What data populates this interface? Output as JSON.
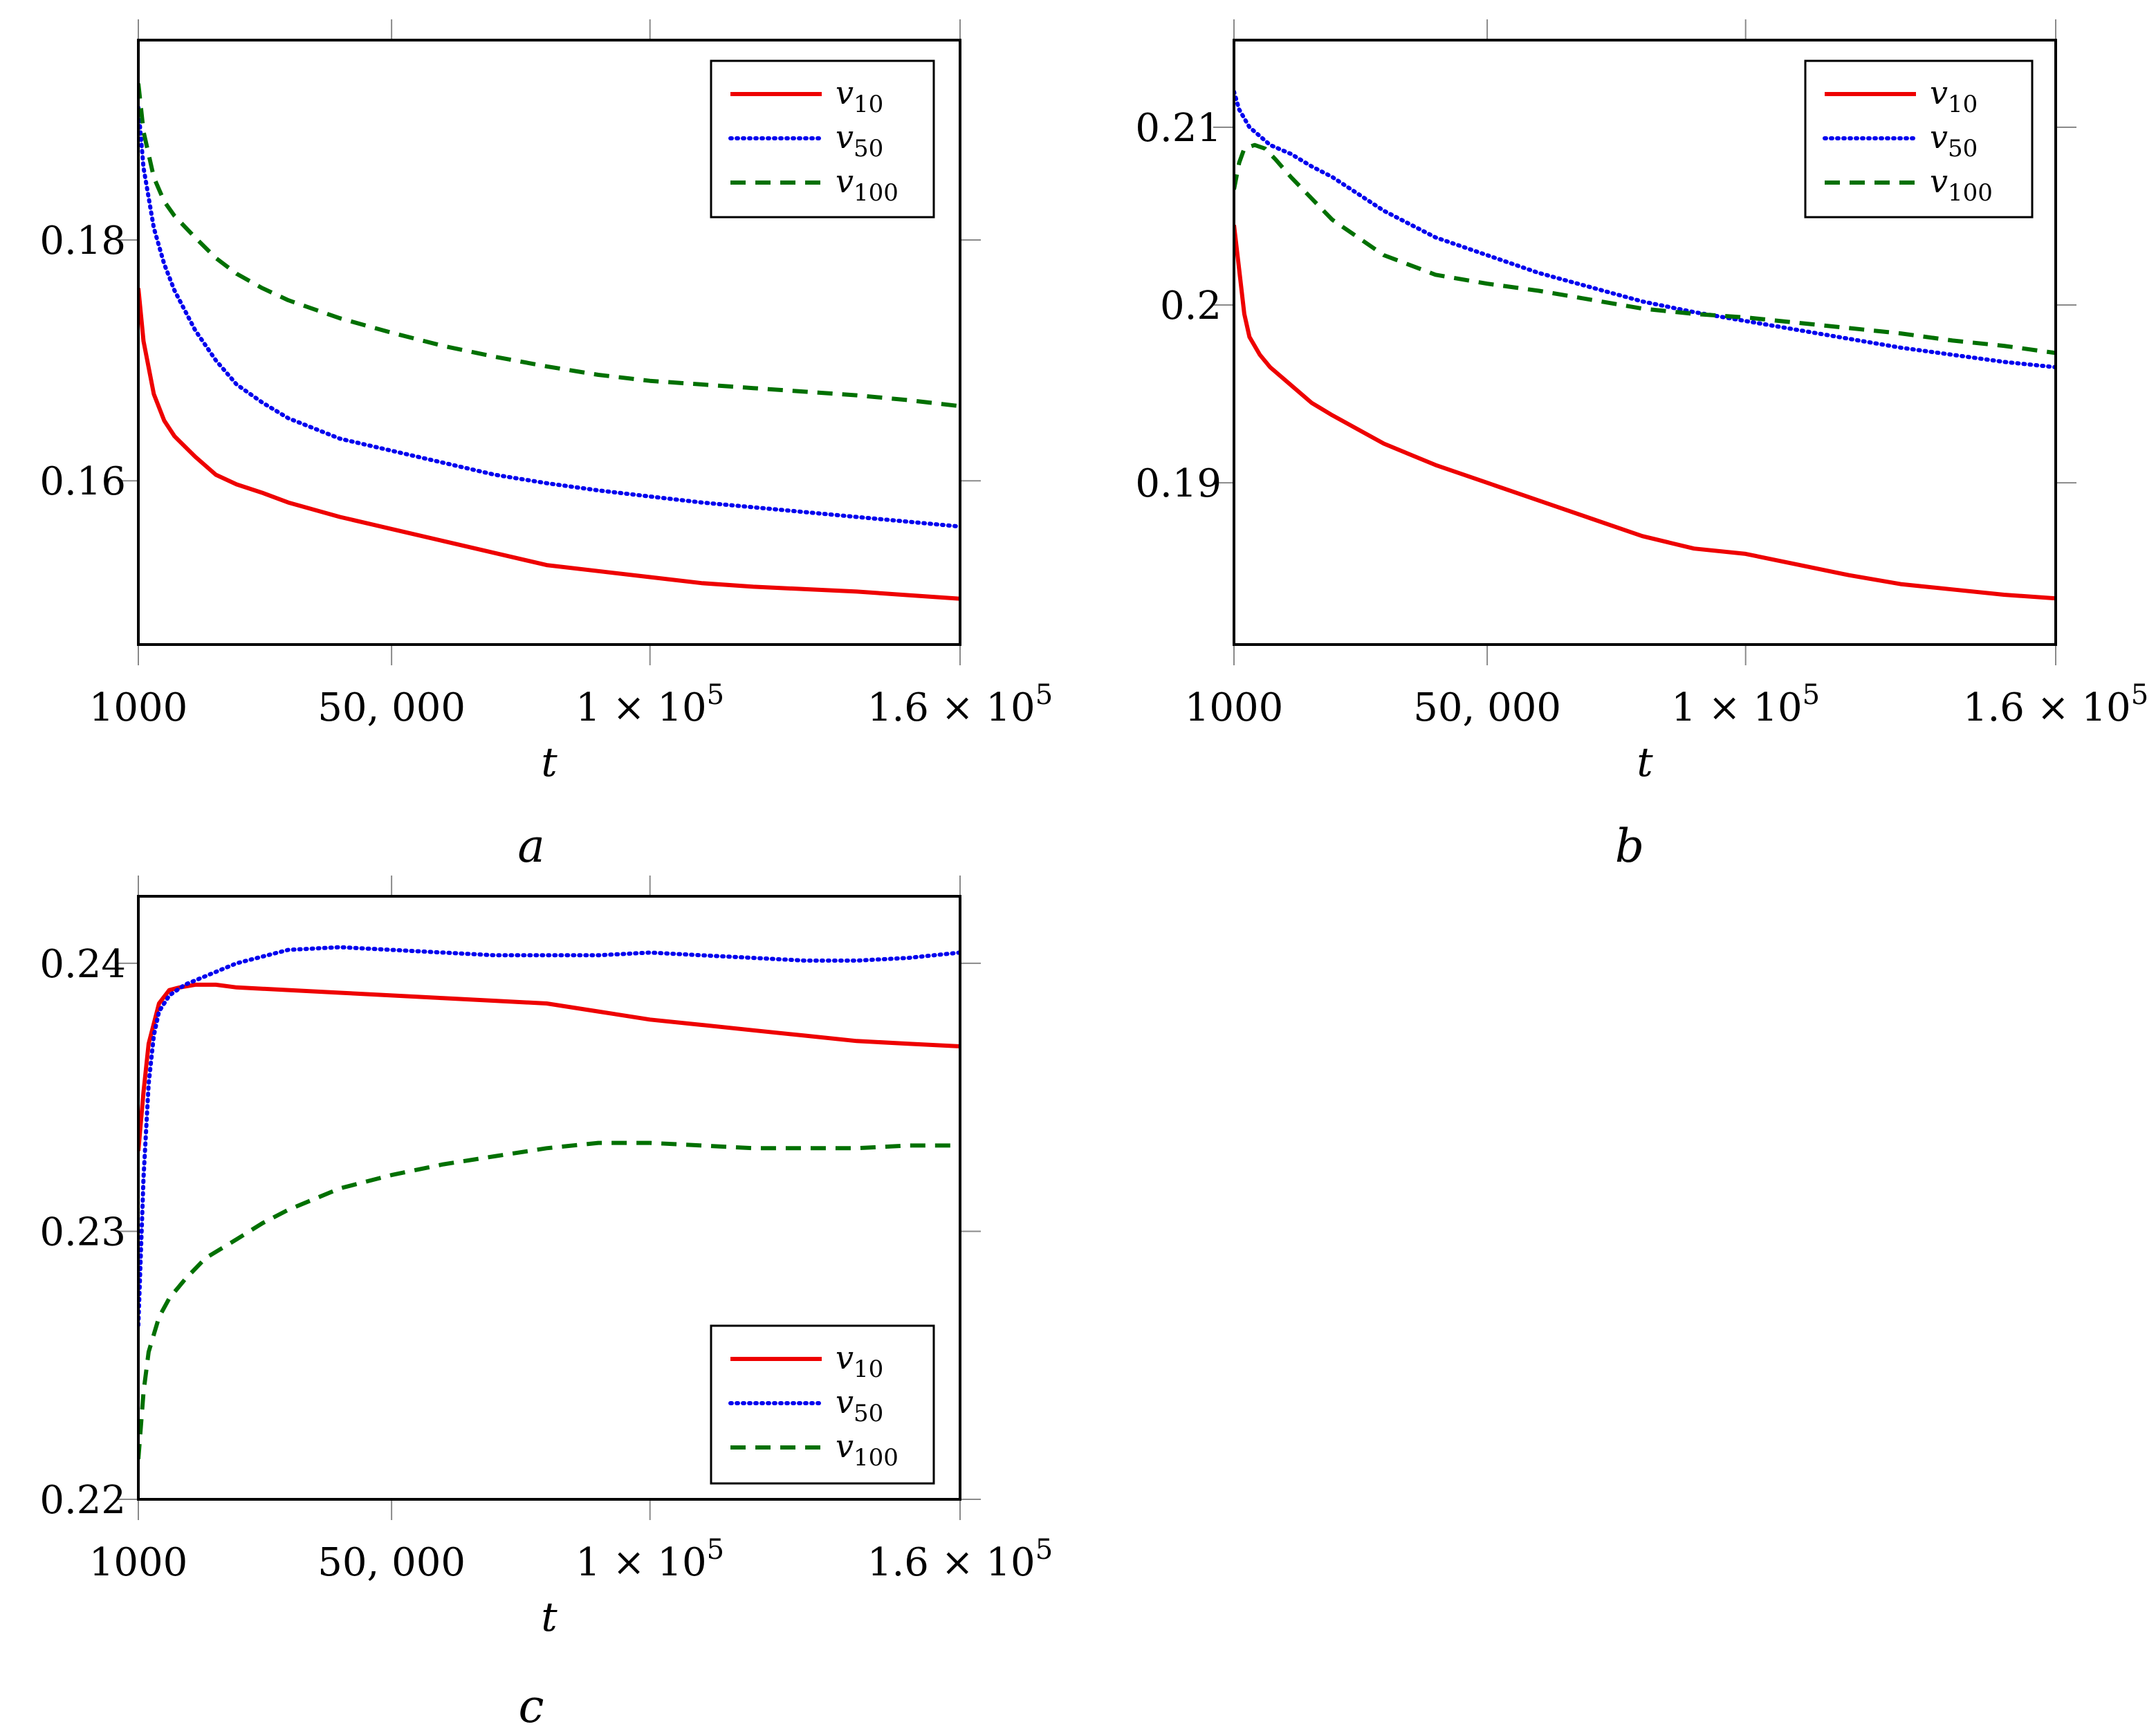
{
  "chart_data": [
    {
      "type": "line",
      "panel_label": "a",
      "xlabel": "t",
      "ylabel": "",
      "xlim": [
        1000,
        160000
      ],
      "ylim": [
        0.1464,
        0.1966
      ],
      "x_ticks": [
        {
          "value": 1000,
          "label": "1000"
        },
        {
          "value": 50000,
          "label": "50, 000"
        },
        {
          "value": 100000,
          "label": "1 × 10",
          "exp": "5"
        },
        {
          "value": 160000,
          "label": "1.6 × 10",
          "exp": "5"
        }
      ],
      "y_ticks": [
        {
          "value": 0.16,
          "label": "0.16"
        },
        {
          "value": 0.18,
          "label": "0.18"
        }
      ],
      "legend_position": "top-right",
      "series": [
        {
          "name": "v",
          "sub": "10",
          "color": "#ee0000",
          "style": "solid",
          "x": [
            1000,
            2000,
            4000,
            6000,
            8000,
            12000,
            16000,
            20000,
            25000,
            30000,
            40000,
            50000,
            60000,
            70000,
            80000,
            90000,
            100000,
            110000,
            120000,
            130000,
            140000,
            150000,
            160000
          ],
          "y": [
            0.176,
            0.1716,
            0.1672,
            0.165,
            0.1637,
            0.162,
            0.1605,
            0.1597,
            0.159,
            0.1582,
            0.157,
            0.156,
            0.155,
            0.154,
            0.153,
            0.1525,
            0.152,
            0.1515,
            0.1512,
            0.151,
            0.1508,
            0.1505,
            0.1502
          ]
        },
        {
          "name": "v",
          "sub": "50",
          "color": "#0000ee",
          "style": "dotted",
          "x": [
            1000,
            2000,
            4000,
            6000,
            8000,
            12000,
            16000,
            20000,
            25000,
            30000,
            40000,
            50000,
            60000,
            70000,
            80000,
            90000,
            100000,
            110000,
            120000,
            130000,
            140000,
            150000,
            160000
          ],
          "y": [
            0.191,
            0.186,
            0.181,
            0.178,
            0.1758,
            0.1725,
            0.17,
            0.168,
            0.1665,
            0.1652,
            0.1635,
            0.1625,
            0.1615,
            0.1605,
            0.1598,
            0.1592,
            0.1587,
            0.1582,
            0.1578,
            0.1574,
            0.157,
            0.1566,
            0.1562
          ]
        },
        {
          "name": "v",
          "sub": "100",
          "color": "#007000",
          "style": "dashed",
          "x": [
            1000,
            2000,
            4000,
            6000,
            8000,
            12000,
            16000,
            20000,
            25000,
            30000,
            40000,
            50000,
            60000,
            70000,
            80000,
            90000,
            100000,
            110000,
            120000,
            130000,
            140000,
            150000,
            160000
          ],
          "y": [
            0.193,
            0.189,
            0.1852,
            0.1832,
            0.182,
            0.1802,
            0.1785,
            0.1772,
            0.176,
            0.175,
            0.1735,
            0.1723,
            0.1712,
            0.1703,
            0.1695,
            0.1688,
            0.1683,
            0.168,
            0.1677,
            0.1674,
            0.1671,
            0.1667,
            0.1662
          ]
        }
      ]
    },
    {
      "type": "line",
      "panel_label": "b",
      "xlabel": "t",
      "ylabel": "",
      "xlim": [
        1000,
        160000
      ],
      "ylim": [
        0.1809,
        0.2149
      ],
      "x_ticks": [
        {
          "value": 1000,
          "label": "1000"
        },
        {
          "value": 50000,
          "label": "50, 000"
        },
        {
          "value": 100000,
          "label": "1 × 10",
          "exp": "5"
        },
        {
          "value": 160000,
          "label": "1.6 × 10",
          "exp": "5"
        }
      ],
      "y_ticks": [
        {
          "value": 0.19,
          "label": "0.19"
        },
        {
          "value": 0.2,
          "label": "0.2"
        },
        {
          "value": 0.21,
          "label": "0.21"
        }
      ],
      "legend_position": "top-right",
      "series": [
        {
          "name": "v",
          "sub": "10",
          "color": "#ee0000",
          "style": "solid",
          "x": [
            1000,
            2000,
            3000,
            4000,
            6000,
            8000,
            12000,
            16000,
            20000,
            30000,
            40000,
            50000,
            60000,
            70000,
            80000,
            90000,
            100000,
            110000,
            120000,
            130000,
            140000,
            150000,
            160000
          ],
          "y": [
            0.2045,
            0.202,
            0.1995,
            0.1982,
            0.1972,
            0.1965,
            0.1955,
            0.1945,
            0.1938,
            0.1922,
            0.191,
            0.19,
            0.189,
            0.188,
            0.187,
            0.1863,
            0.186,
            0.1854,
            0.1848,
            0.1843,
            0.184,
            0.1837,
            0.1835
          ]
        },
        {
          "name": "v",
          "sub": "50",
          "color": "#0000ee",
          "style": "dotted",
          "x": [
            1000,
            2000,
            4000,
            6000,
            8000,
            12000,
            16000,
            20000,
            30000,
            40000,
            50000,
            60000,
            70000,
            80000,
            90000,
            100000,
            110000,
            120000,
            130000,
            140000,
            150000,
            160000
          ],
          "y": [
            0.212,
            0.211,
            0.21,
            0.2095,
            0.209,
            0.2085,
            0.2078,
            0.2072,
            0.2053,
            0.2038,
            0.2028,
            0.2018,
            0.201,
            0.2002,
            0.1996,
            0.1991,
            0.1986,
            0.1981,
            0.1976,
            0.1972,
            0.1968,
            0.1965
          ]
        },
        {
          "name": "v",
          "sub": "100",
          "color": "#007000",
          "style": "dashed",
          "x": [
            1000,
            2000,
            3000,
            5000,
            7000,
            9000,
            12000,
            16000,
            20000,
            30000,
            40000,
            50000,
            60000,
            70000,
            80000,
            90000,
            100000,
            110000,
            120000,
            130000,
            140000,
            150000,
            160000
          ],
          "y": [
            0.2065,
            0.208,
            0.2088,
            0.209,
            0.2088,
            0.2082,
            0.2072,
            0.206,
            0.2048,
            0.2028,
            0.2017,
            0.2012,
            0.2008,
            0.2003,
            0.1998,
            0.1995,
            0.1993,
            0.199,
            0.1987,
            0.1984,
            0.198,
            0.1977,
            0.1973
          ]
        }
      ]
    },
    {
      "type": "line",
      "panel_label": "c",
      "xlabel": "t",
      "ylabel": "",
      "xlim": [
        1000,
        160000
      ],
      "ylim": [
        0.22,
        0.2425
      ],
      "x_ticks": [
        {
          "value": 1000,
          "label": "1000"
        },
        {
          "value": 50000,
          "label": "50, 000"
        },
        {
          "value": 100000,
          "label": "1 × 10",
          "exp": "5"
        },
        {
          "value": 160000,
          "label": "1.6 × 10",
          "exp": "5"
        }
      ],
      "y_ticks": [
        {
          "value": 0.22,
          "label": "0.22"
        },
        {
          "value": 0.23,
          "label": "0.23"
        },
        {
          "value": 0.24,
          "label": "0.24"
        }
      ],
      "legend_position": "bottom-right",
      "series": [
        {
          "name": "v",
          "sub": "10",
          "color": "#ee0000",
          "style": "solid",
          "x": [
            1000,
            2000,
            3000,
            5000,
            7000,
            9000,
            12000,
            16000,
            20000,
            30000,
            40000,
            50000,
            60000,
            70000,
            80000,
            90000,
            100000,
            110000,
            120000,
            130000,
            140000,
            150000,
            160000
          ],
          "y": [
            0.233,
            0.2352,
            0.237,
            0.2385,
            0.239,
            0.2391,
            0.2392,
            0.2392,
            0.2391,
            0.239,
            0.2389,
            0.2388,
            0.2387,
            0.2386,
            0.2385,
            0.2382,
            0.2379,
            0.2377,
            0.2375,
            0.2373,
            0.2371,
            0.237,
            0.2369
          ]
        },
        {
          "name": "v",
          "sub": "50",
          "color": "#0000ee",
          "style": "dotted",
          "x": [
            1000,
            2000,
            3000,
            4000,
            5000,
            7000,
            10000,
            15000,
            20000,
            30000,
            40000,
            50000,
            60000,
            70000,
            80000,
            90000,
            100000,
            110000,
            120000,
            130000,
            140000,
            150000,
            160000
          ],
          "y": [
            0.2265,
            0.232,
            0.2355,
            0.2373,
            0.2382,
            0.2388,
            0.2392,
            0.2396,
            0.24,
            0.2405,
            0.2406,
            0.2405,
            0.2404,
            0.2403,
            0.2403,
            0.2403,
            0.2404,
            0.2403,
            0.2402,
            0.2401,
            0.2401,
            0.2402,
            0.2404
          ]
        },
        {
          "name": "v",
          "sub": "100",
          "color": "#007000",
          "style": "dashed",
          "x": [
            1000,
            2000,
            3000,
            5000,
            7000,
            10000,
            14000,
            20000,
            25000,
            30000,
            40000,
            50000,
            60000,
            70000,
            80000,
            90000,
            100000,
            110000,
            120000,
            130000,
            140000,
            150000,
            160000
          ],
          "y": [
            0.2215,
            0.224,
            0.2255,
            0.2268,
            0.2275,
            0.2282,
            0.229,
            0.2297,
            0.2303,
            0.2308,
            0.2316,
            0.2321,
            0.2325,
            0.2328,
            0.2331,
            0.2333,
            0.2333,
            0.2332,
            0.2331,
            0.2331,
            0.2331,
            0.2332,
            0.2332
          ]
        }
      ]
    }
  ]
}
